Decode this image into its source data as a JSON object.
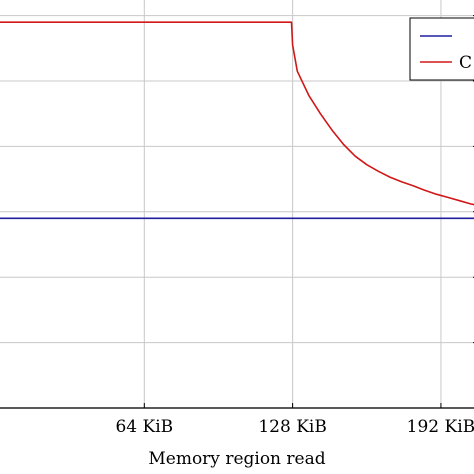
{
  "chart_data": {
    "type": "line",
    "title": "",
    "xlabel": "Memory region read",
    "ylabel": "",
    "x_unit": "KiB",
    "xlim": [
      0,
      208
    ],
    "ylim": [
      0,
      6.3
    ],
    "grid": true,
    "legend": "top-right",
    "x_ticks": [
      {
        "value": 64,
        "label": "64 KiB"
      },
      {
        "value": 128,
        "label": "128 KiB"
      },
      {
        "value": 192,
        "label": "192 KiB"
      }
    ],
    "series": [
      {
        "name": "",
        "color": "#1f1fa0",
        "x": [
          0,
          16,
          32,
          48,
          64,
          80,
          96,
          112,
          128,
          144,
          160,
          176,
          192,
          208
        ],
        "y": [
          2.9,
          2.9,
          2.9,
          2.9,
          2.9,
          2.9,
          2.9,
          2.9,
          2.9,
          2.9,
          2.9,
          2.9,
          2.9,
          2.9
        ]
      },
      {
        "name": "C",
        "color": "#d01818",
        "x": [
          0,
          32,
          64,
          96,
          127.5,
          128,
          130,
          135,
          140,
          145,
          150,
          155,
          160,
          165,
          170,
          175,
          180,
          185,
          190,
          195,
          200,
          205,
          208
        ],
        "y": [
          5.9,
          5.9,
          5.9,
          5.9,
          5.9,
          5.55,
          5.15,
          4.78,
          4.5,
          4.25,
          4.03,
          3.85,
          3.72,
          3.62,
          3.53,
          3.46,
          3.4,
          3.33,
          3.27,
          3.22,
          3.17,
          3.12,
          3.1
        ]
      }
    ]
  }
}
